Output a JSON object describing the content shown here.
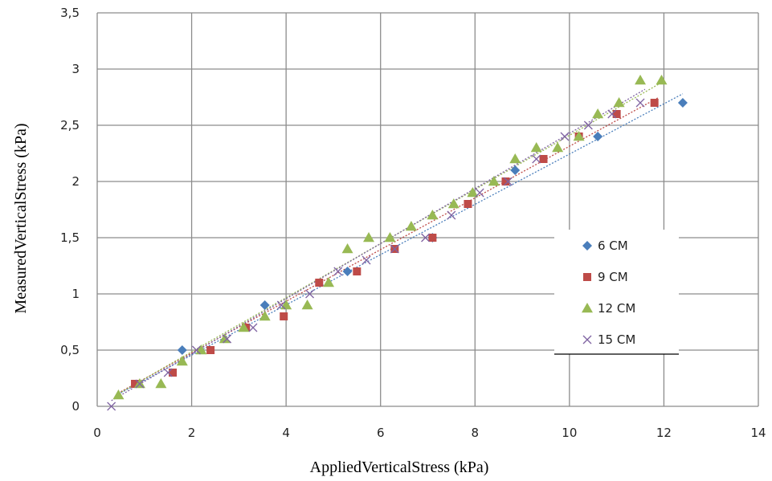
{
  "chart_data": {
    "type": "scatter",
    "xlabel": "AppliedVerticalStress (kPa)",
    "ylabel": "MeasuredVerticalStress (kPa)",
    "xlim": [
      0,
      14
    ],
    "ylim": [
      0,
      3.5
    ],
    "x_ticks": [
      "0",
      "2",
      "4",
      "6",
      "8",
      "10",
      "12",
      "14"
    ],
    "y_ticks": [
      "0",
      "0,5",
      "1",
      "1,5",
      "2",
      "2,5",
      "3",
      "3,5"
    ],
    "grid": true,
    "legend_position": "right",
    "series": [
      {
        "name": "6 CM",
        "marker": "diamond",
        "color": "#4a7ebb",
        "points": [
          [
            1.8,
            0.5
          ],
          [
            3.55,
            0.9
          ],
          [
            5.3,
            1.2
          ],
          [
            7.1,
            1.5
          ],
          [
            8.85,
            2.1
          ],
          [
            10.6,
            2.4
          ],
          [
            12.4,
            2.7
          ]
        ],
        "trendline": [
          [
            0.5,
            0.12
          ],
          [
            12.4,
            2.78
          ]
        ]
      },
      {
        "name": "9 CM",
        "marker": "square",
        "color": "#be4b48",
        "points": [
          [
            0.8,
            0.2
          ],
          [
            1.6,
            0.3
          ],
          [
            2.4,
            0.5
          ],
          [
            3.15,
            0.7
          ],
          [
            3.95,
            0.8
          ],
          [
            4.7,
            1.1
          ],
          [
            5.5,
            1.2
          ],
          [
            6.3,
            1.4
          ],
          [
            7.1,
            1.5
          ],
          [
            7.85,
            1.8
          ],
          [
            8.65,
            2.0
          ],
          [
            9.45,
            2.2
          ],
          [
            10.2,
            2.4
          ],
          [
            11.0,
            2.6
          ],
          [
            11.8,
            2.7
          ]
        ],
        "trendline": [
          [
            0.5,
            0.13
          ],
          [
            11.9,
            2.75
          ]
        ]
      },
      {
        "name": "12 CM",
        "marker": "triangle",
        "color": "#98b954",
        "points": [
          [
            0.45,
            0.1
          ],
          [
            0.9,
            0.2
          ],
          [
            1.35,
            0.2
          ],
          [
            1.8,
            0.4
          ],
          [
            2.2,
            0.5
          ],
          [
            2.7,
            0.6
          ],
          [
            3.1,
            0.7
          ],
          [
            3.55,
            0.8
          ],
          [
            4.0,
            0.9
          ],
          [
            4.45,
            0.9
          ],
          [
            4.9,
            1.1
          ],
          [
            5.3,
            1.4
          ],
          [
            5.75,
            1.5
          ],
          [
            6.2,
            1.5
          ],
          [
            6.65,
            1.6
          ],
          [
            7.1,
            1.7
          ],
          [
            7.55,
            1.8
          ],
          [
            7.95,
            1.9
          ],
          [
            8.4,
            2.0
          ],
          [
            8.85,
            2.2
          ],
          [
            9.3,
            2.3
          ],
          [
            9.75,
            2.3
          ],
          [
            10.2,
            2.4
          ],
          [
            10.6,
            2.6
          ],
          [
            11.05,
            2.7
          ],
          [
            11.5,
            2.9
          ],
          [
            11.95,
            2.9
          ]
        ],
        "trendline": [
          [
            0.4,
            0.1
          ],
          [
            11.95,
            2.88
          ]
        ]
      },
      {
        "name": "15 CM",
        "marker": "x",
        "color": "#7f63a2",
        "points": [
          [
            0.3,
            0.0
          ],
          [
            0.9,
            0.2
          ],
          [
            1.5,
            0.3
          ],
          [
            2.1,
            0.5
          ],
          [
            2.75,
            0.6
          ],
          [
            3.3,
            0.7
          ],
          [
            3.9,
            0.9
          ],
          [
            4.5,
            1.0
          ],
          [
            5.1,
            1.2
          ],
          [
            5.7,
            1.3
          ],
          [
            6.3,
            1.4
          ],
          [
            6.95,
            1.5
          ],
          [
            7.5,
            1.7
          ],
          [
            8.1,
            1.9
          ],
          [
            8.7,
            2.0
          ],
          [
            9.3,
            2.2
          ],
          [
            9.9,
            2.4
          ],
          [
            10.4,
            2.5
          ],
          [
            10.9,
            2.6
          ],
          [
            11.5,
            2.7
          ]
        ],
        "trendline": [
          [
            0.3,
            0.05
          ],
          [
            11.6,
            2.82
          ]
        ]
      }
    ]
  }
}
